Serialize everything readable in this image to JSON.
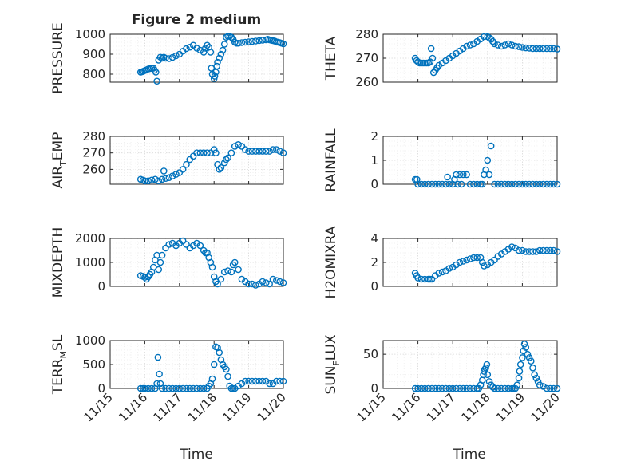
{
  "figure": {
    "title": "Figure 2 medium",
    "xlabel": "Time",
    "xtick_labels": [
      "11/15",
      "11/16",
      "11/17",
      "11/18",
      "11/19",
      "11/20"
    ],
    "xtick_values": [
      15,
      16,
      17,
      18,
      19,
      20
    ],
    "marker_color": "#0072BD"
  },
  "chart_data": [
    {
      "type": "scatter",
      "ylabel": "PRESSURE",
      "ylim": [
        760,
        1000
      ],
      "yticks": [
        800,
        900,
        1000
      ],
      "yticklabels": [
        "800",
        "900",
        "1000"
      ],
      "xlim": [
        15,
        20
      ],
      "grid": true,
      "x": [
        15.88,
        15.92,
        15.96,
        16.0,
        16.05,
        16.1,
        16.15,
        16.2,
        16.25,
        16.28,
        16.32,
        16.35,
        16.4,
        16.45,
        16.5,
        16.55,
        16.6,
        16.7,
        16.8,
        16.9,
        17.0,
        17.1,
        17.2,
        17.3,
        17.4,
        17.5,
        17.6,
        17.7,
        17.75,
        17.8,
        17.85,
        17.9,
        17.92,
        17.95,
        18.0,
        18.02,
        18.05,
        18.08,
        18.1,
        18.15,
        18.2,
        18.25,
        18.3,
        18.35,
        18.4,
        18.45,
        18.5,
        18.55,
        18.6,
        18.65,
        18.7,
        18.8,
        18.9,
        19.0,
        19.1,
        19.2,
        19.3,
        19.4,
        19.5,
        19.55,
        19.6,
        19.65,
        19.7,
        19.75,
        19.8,
        19.85,
        19.9,
        19.95,
        20.0
      ],
      "y": [
        810,
        812,
        815,
        818,
        822,
        826,
        828,
        830,
        830,
        820,
        810,
        765,
        870,
        885,
        880,
        885,
        880,
        878,
        884,
        892,
        900,
        915,
        928,
        935,
        945,
        930,
        920,
        910,
        930,
        945,
        935,
        910,
        830,
        800,
        778,
        790,
        810,
        840,
        860,
        880,
        900,
        920,
        950,
        985,
        990,
        990,
        985,
        975,
        960,
        955,
        955,
        958,
        960,
        962,
        964,
        966,
        968,
        970,
        972,
        975,
        972,
        970,
        968,
        966,
        962,
        960,
        958,
        955,
        952
      ]
    },
    {
      "type": "scatter",
      "ylabel": "THETA",
      "ylim": [
        260,
        280
      ],
      "yticks": [
        260,
        270,
        280
      ],
      "yticklabels": [
        "260",
        "270",
        "280"
      ],
      "xlim": [
        15,
        20
      ],
      "grid": true,
      "x": [
        15.92,
        15.96,
        16.0,
        16.05,
        16.1,
        16.15,
        16.2,
        16.25,
        16.3,
        16.35,
        16.38,
        16.42,
        16.45,
        16.5,
        16.55,
        16.6,
        16.7,
        16.8,
        16.9,
        17.0,
        17.1,
        17.2,
        17.3,
        17.4,
        17.5,
        17.6,
        17.7,
        17.8,
        17.9,
        18.0,
        18.05,
        18.1,
        18.15,
        18.2,
        18.3,
        18.4,
        18.5,
        18.6,
        18.7,
        18.8,
        18.9,
        19.0,
        19.1,
        19.2,
        19.3,
        19.4,
        19.5,
        19.6,
        19.7,
        19.8,
        19.9,
        20.0
      ],
      "y": [
        270,
        269,
        268.5,
        268,
        268,
        268,
        268,
        268,
        268,
        268.5,
        274,
        270,
        264,
        265,
        266,
        267,
        268,
        269,
        270,
        271,
        272,
        273,
        274,
        275,
        275.5,
        276,
        277,
        278,
        279,
        279,
        278.5,
        278,
        277,
        276,
        275.5,
        275,
        275.5,
        276,
        275.5,
        275,
        274.8,
        274.5,
        274.3,
        274.2,
        274,
        274,
        274,
        274,
        274,
        274,
        274,
        273.8
      ]
    },
    {
      "type": "scatter",
      "ylabel": "AIR_TEMP",
      "ylim": [
        251,
        280
      ],
      "yticks": [
        260,
        270,
        280
      ],
      "yticklabels": [
        "260",
        "270",
        "280"
      ],
      "xlim": [
        15,
        20
      ],
      "grid": true,
      "x": [
        15.88,
        15.95,
        16.0,
        16.1,
        16.2,
        16.3,
        16.4,
        16.5,
        16.55,
        16.6,
        16.7,
        16.8,
        16.9,
        17.0,
        17.1,
        17.2,
        17.3,
        17.4,
        17.5,
        17.6,
        17.7,
        17.8,
        17.9,
        18.0,
        18.05,
        18.1,
        18.15,
        18.2,
        18.3,
        18.35,
        18.4,
        18.5,
        18.6,
        18.7,
        18.8,
        18.9,
        19.0,
        19.1,
        19.2,
        19.3,
        19.4,
        19.5,
        19.6,
        19.7,
        19.8,
        19.9,
        20.0
      ],
      "y": [
        254,
        253.5,
        253,
        253,
        253.5,
        254,
        253,
        254,
        259,
        254.5,
        255,
        256,
        257,
        258,
        260,
        263,
        266,
        268,
        270,
        270,
        270,
        270,
        270,
        272,
        270,
        263,
        260,
        261,
        264,
        266,
        267,
        270,
        274,
        275,
        274,
        272,
        271,
        271,
        271,
        271,
        271,
        271,
        271,
        272,
        272,
        271,
        270
      ]
    },
    {
      "type": "scatter",
      "ylabel": "RAINFALL",
      "ylim": [
        0,
        2
      ],
      "yticks": [
        0,
        1,
        2
      ],
      "yticklabels": [
        "0",
        "1",
        "2"
      ],
      "xlim": [
        15,
        20
      ],
      "grid": true,
      "x": [
        15.92,
        15.97,
        16.0,
        16.1,
        16.2,
        16.3,
        16.4,
        16.5,
        16.6,
        16.7,
        16.8,
        16.85,
        16.9,
        17.0,
        17.05,
        17.1,
        17.15,
        17.2,
        17.25,
        17.3,
        17.4,
        17.5,
        17.6,
        17.7,
        17.8,
        17.85,
        17.9,
        17.95,
        18.0,
        18.05,
        18.1,
        18.2,
        18.3,
        18.4,
        18.5,
        18.6,
        18.7,
        18.8,
        18.9,
        19.0,
        19.1,
        19.2,
        19.3,
        19.4,
        19.5,
        19.6,
        19.7,
        19.8,
        19.9,
        20.0
      ],
      "y": [
        0.2,
        0.2,
        0,
        0,
        0,
        0,
        0,
        0,
        0,
        0,
        0,
        0.3,
        0,
        0,
        0.2,
        0.4,
        0,
        0.4,
        0,
        0.4,
        0.4,
        0,
        0,
        0,
        0,
        0,
        0.4,
        0.6,
        1.0,
        0.4,
        1.6,
        0,
        0,
        0,
        0,
        0,
        0,
        0,
        0,
        0,
        0,
        0,
        0,
        0,
        0,
        0,
        0,
        0,
        0,
        0
      ]
    },
    {
      "type": "scatter",
      "ylabel": "MIXDEPTH",
      "ylim": [
        0,
        2000
      ],
      "yticks": [
        0,
        1000,
        2000
      ],
      "yticklabels": [
        "0",
        "1000",
        "2000"
      ],
      "xlim": [
        15,
        20
      ],
      "grid": true,
      "x": [
        15.88,
        15.95,
        16.0,
        16.05,
        16.1,
        16.15,
        16.2,
        16.25,
        16.3,
        16.35,
        16.4,
        16.45,
        16.5,
        16.6,
        16.7,
        16.8,
        16.9,
        17.0,
        17.1,
        17.2,
        17.3,
        17.4,
        17.5,
        17.6,
        17.7,
        17.75,
        17.8,
        17.85,
        17.9,
        17.95,
        18.0,
        18.05,
        18.1,
        18.2,
        18.3,
        18.4,
        18.5,
        18.55,
        18.6,
        18.7,
        18.8,
        18.9,
        19.0,
        19.1,
        19.2,
        19.3,
        19.4,
        19.5,
        19.6,
        19.7,
        19.8,
        19.9,
        20.0
      ],
      "y": [
        450,
        420,
        380,
        300,
        400,
        500,
        600,
        800,
        1100,
        1300,
        700,
        1000,
        1300,
        1600,
        1750,
        1800,
        1700,
        1800,
        1900,
        1750,
        1600,
        1700,
        1800,
        1700,
        1500,
        1400,
        1400,
        1200,
        1000,
        800,
        400,
        200,
        100,
        300,
        600,
        650,
        600,
        900,
        1000,
        700,
        300,
        200,
        100,
        100,
        50,
        100,
        200,
        150,
        100,
        300,
        250,
        200,
        150
      ]
    },
    {
      "type": "scatter",
      "ylabel": "H2OMIXRA",
      "ylim": [
        0,
        4
      ],
      "yticks": [
        0,
        2,
        4
      ],
      "yticklabels": [
        "0",
        "2",
        "4"
      ],
      "xlim": [
        15,
        20
      ],
      "grid": true,
      "x": [
        15.92,
        15.96,
        16.0,
        16.1,
        16.2,
        16.3,
        16.35,
        16.4,
        16.5,
        16.6,
        16.7,
        16.8,
        16.9,
        17.0,
        17.1,
        17.2,
        17.3,
        17.4,
        17.5,
        17.6,
        17.7,
        17.8,
        17.85,
        17.9,
        18.0,
        18.1,
        18.2,
        18.3,
        18.4,
        18.5,
        18.6,
        18.7,
        18.8,
        18.9,
        19.0,
        19.1,
        19.2,
        19.3,
        19.4,
        19.5,
        19.6,
        19.7,
        19.8,
        19.9,
        20.0
      ],
      "y": [
        1.1,
        0.9,
        0.7,
        0.6,
        0.6,
        0.6,
        0.6,
        0.6,
        0.9,
        1.1,
        1.2,
        1.3,
        1.5,
        1.6,
        1.8,
        2.0,
        2.1,
        2.2,
        2.3,
        2.4,
        2.4,
        2.4,
        2.0,
        1.7,
        1.8,
        2.0,
        2.2,
        2.5,
        2.7,
        2.9,
        3.1,
        3.3,
        3.2,
        3.0,
        3.0,
        2.9,
        2.9,
        2.9,
        2.9,
        3.0,
        3.0,
        3.0,
        3.0,
        3.0,
        2.9
      ]
    },
    {
      "type": "scatter",
      "ylabel": "TERR_MSL",
      "ylim": [
        0,
        1000
      ],
      "yticks": [
        0,
        500,
        1000
      ],
      "yticklabels": [
        "0",
        "500",
        "1000"
      ],
      "xlim": [
        15,
        20
      ],
      "grid": true,
      "x": [
        15.88,
        15.95,
        16.0,
        16.1,
        16.2,
        16.3,
        16.35,
        16.38,
        16.42,
        16.45,
        16.5,
        16.6,
        16.7,
        16.8,
        16.9,
        17.0,
        17.1,
        17.2,
        17.3,
        17.4,
        17.5,
        17.6,
        17.7,
        17.8,
        17.85,
        17.9,
        17.95,
        18.0,
        18.05,
        18.1,
        18.15,
        18.2,
        18.25,
        18.3,
        18.35,
        18.4,
        18.45,
        18.5,
        18.55,
        18.6,
        18.7,
        18.8,
        18.9,
        19.0,
        19.1,
        19.2,
        19.3,
        19.4,
        19.5,
        19.6,
        19.7,
        19.8,
        19.9,
        20.0
      ],
      "y": [
        0,
        0,
        0,
        0,
        0,
        0,
        100,
        650,
        300,
        100,
        0,
        0,
        0,
        0,
        0,
        0,
        0,
        0,
        0,
        0,
        0,
        0,
        0,
        0,
        50,
        100,
        200,
        500,
        870,
        850,
        750,
        600,
        500,
        450,
        400,
        250,
        50,
        0,
        0,
        0,
        50,
        100,
        150,
        150,
        150,
        150,
        150,
        150,
        150,
        100,
        100,
        150,
        150,
        150
      ]
    },
    {
      "type": "scatter",
      "ylabel": "SUN_FLUX",
      "ylim": [
        0,
        70
      ],
      "yticks": [
        0,
        50
      ],
      "yticklabels": [
        "0",
        "50"
      ],
      "xlim": [
        15,
        20
      ],
      "grid": true,
      "x": [
        15.92,
        16.0,
        16.1,
        16.2,
        16.3,
        16.4,
        16.5,
        16.6,
        16.7,
        16.8,
        16.9,
        17.0,
        17.1,
        17.2,
        17.3,
        17.4,
        17.5,
        17.6,
        17.7,
        17.75,
        17.8,
        17.85,
        17.88,
        17.9,
        17.92,
        17.95,
        17.98,
        18.0,
        18.05,
        18.1,
        18.15,
        18.2,
        18.3,
        18.4,
        18.5,
        18.6,
        18.7,
        18.75,
        18.8,
        18.85,
        18.9,
        18.92,
        18.95,
        19.0,
        19.03,
        19.06,
        19.1,
        19.15,
        19.2,
        19.25,
        19.3,
        19.35,
        19.4,
        19.45,
        19.5,
        19.6,
        19.7,
        19.8,
        19.9,
        20.0
      ],
      "y": [
        0,
        0,
        0,
        0,
        0,
        0,
        0,
        0,
        0,
        0,
        0,
        0,
        0,
        0,
        0,
        0,
        0,
        0,
        0,
        0,
        5,
        12,
        20,
        25,
        28,
        30,
        35,
        20,
        10,
        5,
        2,
        0,
        0,
        0,
        0,
        0,
        0,
        0,
        0,
        5,
        15,
        25,
        35,
        45,
        55,
        65,
        60,
        50,
        45,
        40,
        30,
        20,
        15,
        10,
        5,
        3,
        0,
        0,
        0,
        0
      ]
    }
  ]
}
